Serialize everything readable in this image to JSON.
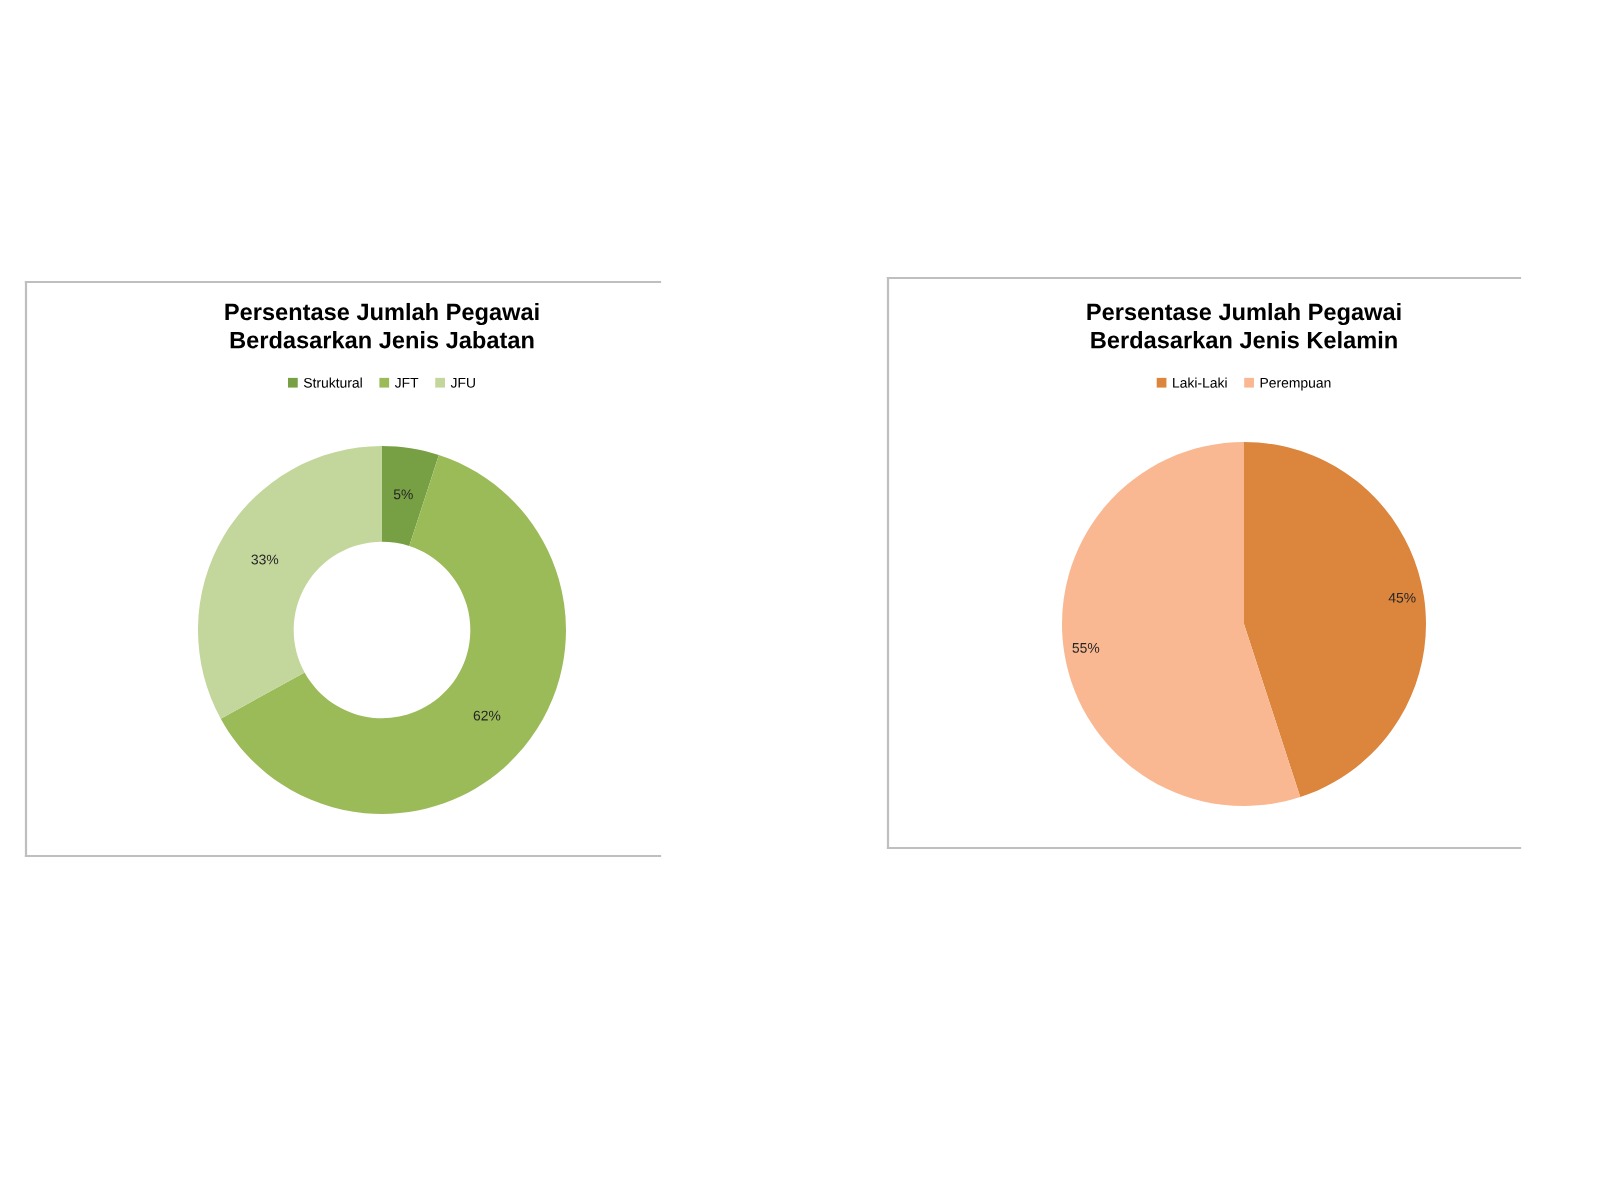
{
  "chart_data": [
    {
      "type": "donut",
      "title": "Persentase Jumlah Pegawai\nBerdasarkan Jenis Jabatan",
      "categories": [
        "Struktural",
        "JFT",
        "JFU"
      ],
      "values": [
        5,
        62,
        33
      ],
      "colors": [
        "#77a044",
        "#9bbb59",
        "#c3d69b"
      ],
      "value_labels": [
        "5%",
        "62%",
        "33%"
      ],
      "legend": "top"
    },
    {
      "type": "pie",
      "title": "Persentase Jumlah Pegawai\nBerdasarkan Jenis Kelamin",
      "categories": [
        "Laki-Laki",
        "Perempuan"
      ],
      "values": [
        45,
        55
      ],
      "colors": [
        "#dc853d",
        "#f9b891"
      ],
      "value_labels": [
        "45%",
        "55%"
      ],
      "legend": "top"
    }
  ]
}
